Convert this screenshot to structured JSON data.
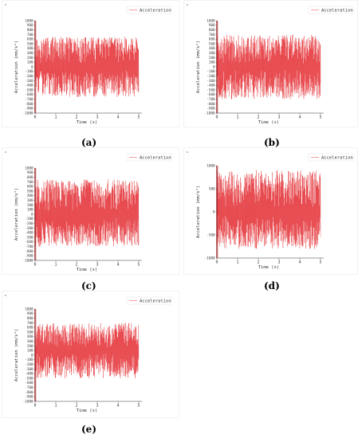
{
  "colors": {
    "signal": "#e0141a",
    "signal_light": "#f28a8a",
    "axis": "#333333",
    "panel_border": "#e6e6e6"
  },
  "chart_data": [
    {
      "type": "line",
      "panel_label": "(a)",
      "xlabel": "Time (s)",
      "ylabel": "Acceleration (mm/s²)",
      "x_ticks": [
        "0",
        "1",
        "2",
        "3",
        "4",
        "5"
      ],
      "xlim": [
        0,
        5
      ],
      "y_ticks": [
        "1000",
        "900",
        "800",
        "700",
        "600",
        "500",
        "400",
        "300",
        "200",
        "100",
        "0",
        "-100",
        "-200",
        "-300",
        "-400",
        "-500",
        "-600",
        "-700",
        "-800",
        "-900",
        "-1000"
      ],
      "ylim": [
        -1000,
        1000
      ],
      "series": [
        {
          "name": "Acceleration",
          "samples": 520,
          "x_range": [
            0,
            5
          ],
          "upper_peak": 650,
          "lower_peak": -650,
          "center": 0
        }
      ],
      "legend": "top-right",
      "grid": false
    },
    {
      "type": "line",
      "panel_label": "(b)",
      "xlabel": "Time (s)",
      "ylabel": "Acceleration (mm/s²)",
      "x_ticks": [
        "0",
        "1",
        "2",
        "3",
        "4",
        "5"
      ],
      "xlim": [
        0,
        5
      ],
      "y_ticks": [
        "1000",
        "900",
        "800",
        "700",
        "600",
        "500",
        "400",
        "300",
        "200",
        "100",
        "0",
        "-100",
        "-200",
        "-300",
        "-400",
        "-500",
        "-600",
        "-700",
        "-800",
        "-900",
        "-1000"
      ],
      "ylim": [
        -1000,
        1000
      ],
      "series": [
        {
          "name": "Acceleration",
          "samples": 520,
          "x_range": [
            0,
            5
          ],
          "upper_peak": 700,
          "lower_peak": -700,
          "center": 0
        }
      ],
      "legend": "top-right",
      "grid": false
    },
    {
      "type": "line",
      "panel_label": "(c)",
      "xlabel": "Time (s)",
      "ylabel": "Acceleration (mm/s²)",
      "x_ticks": [
        "0",
        "1",
        "2",
        "3",
        "4",
        "5"
      ],
      "xlim": [
        0,
        5
      ],
      "y_ticks": [
        "1000",
        "900",
        "800",
        "700",
        "600",
        "500",
        "400",
        "300",
        "200",
        "100",
        "0",
        "-100",
        "-200",
        "-300",
        "-400",
        "-500",
        "-600",
        "-700",
        "-800",
        "-900",
        "-1000"
      ],
      "ylim": [
        -1000,
        1000
      ],
      "series": [
        {
          "name": "Acceleration",
          "samples": 520,
          "x_range": [
            0,
            5
          ],
          "upper_peak": 750,
          "lower_peak": -700,
          "center": 0
        }
      ],
      "legend": "top-right",
      "grid": false
    },
    {
      "type": "line",
      "panel_label": "(d)",
      "xlabel": "Time (s)",
      "ylabel": "Acceleration (mm/s²)",
      "x_ticks": [
        "0",
        "1",
        "2",
        "3",
        "4",
        "5"
      ],
      "xlim": [
        0,
        5
      ],
      "y_ticks": [
        "1000",
        "500",
        "0",
        "-500",
        "-1000"
      ],
      "ylim": [
        -1000,
        1000
      ],
      "series": [
        {
          "name": "Acceleration",
          "samples": 520,
          "x_range": [
            0,
            5
          ],
          "upper_peak": 900,
          "lower_peak": -800,
          "center": 0
        }
      ],
      "legend": "top-right",
      "grid": false
    },
    {
      "type": "line",
      "panel_label": "(e)",
      "xlabel": "Time (s)",
      "ylabel": "Acceleration (mm/s²)",
      "x_ticks": [
        "0",
        "1",
        "2",
        "3",
        "4",
        "5"
      ],
      "xlim": [
        0,
        5
      ],
      "y_ticks": [
        "1000",
        "900",
        "800",
        "700",
        "600",
        "500",
        "400",
        "300",
        "200",
        "100",
        "0",
        "-100",
        "-200",
        "-300",
        "-400",
        "-500",
        "-600",
        "-700",
        "-800",
        "-900",
        "-1000"
      ],
      "ylim": [
        -1000,
        1000
      ],
      "series": [
        {
          "name": "Acceleration",
          "samples": 520,
          "x_range": [
            0,
            5
          ],
          "upper_peak": 700,
          "lower_peak": -500,
          "center": 100
        }
      ],
      "legend": "top-right",
      "grid": false
    }
  ]
}
